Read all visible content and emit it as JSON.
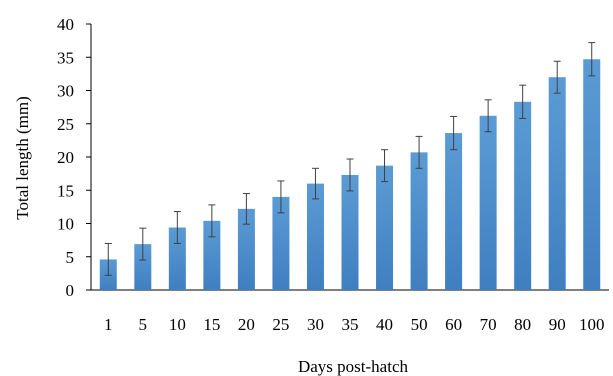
{
  "chart_data": {
    "type": "bar",
    "xlabel": "Days post-hatch",
    "ylabel": "Total length (mm)",
    "ylim": [
      0,
      40
    ],
    "yticks": [
      0,
      5,
      10,
      15,
      20,
      25,
      30,
      35,
      40
    ],
    "grid": false,
    "categories": [
      "1",
      "5",
      "10",
      "15",
      "20",
      "25",
      "30",
      "35",
      "40",
      "50",
      "60",
      "70",
      "80",
      "90",
      "100"
    ],
    "values": [
      4.6,
      6.9,
      9.4,
      10.4,
      12.2,
      14.0,
      16.0,
      17.3,
      18.7,
      20.7,
      23.6,
      26.2,
      28.3,
      32.0,
      34.7
    ],
    "errors": [
      2.4,
      2.4,
      2.4,
      2.4,
      2.3,
      2.4,
      2.3,
      2.4,
      2.4,
      2.4,
      2.5,
      2.4,
      2.5,
      2.4,
      2.5
    ],
    "colors": {
      "bar": "#5b9bd5",
      "bar_dark": "#3f7fc0",
      "error": "#404040",
      "axis": "#000000"
    }
  }
}
